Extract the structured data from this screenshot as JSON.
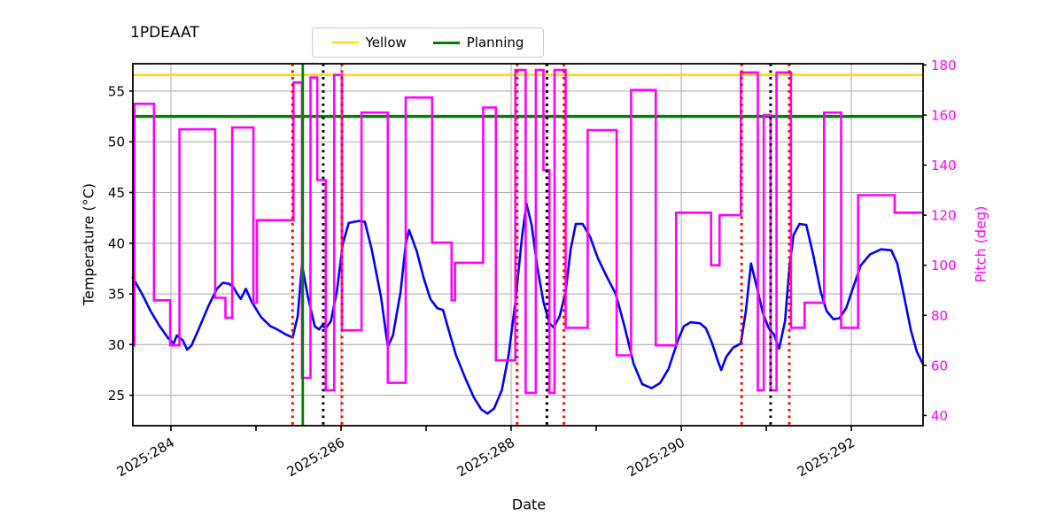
{
  "title": "1PDEAAT",
  "legend": {
    "items": [
      {
        "label": "Yellow",
        "color": "#FFD700",
        "linewidth": 2.5
      },
      {
        "label": "Planning",
        "color": "#008000",
        "linewidth": 3.5
      }
    ]
  },
  "axes": {
    "x": {
      "label": "Date",
      "range": [
        283.552,
        292.843
      ],
      "tick_days": [
        284,
        285,
        286,
        287,
        288,
        289,
        290,
        291,
        292
      ],
      "tick_labels": {
        "284": "2025:284",
        "286": "2025:286",
        "288": "2025:288",
        "290": "2025:290",
        "292": "2025:292"
      },
      "grid_days": [
        284,
        286,
        288,
        290,
        292
      ]
    },
    "y_left": {
      "label": "Temperature (°C)",
      "range": [
        22,
        57.7
      ],
      "ticks": [
        25,
        30,
        35,
        40,
        45,
        50,
        55
      ],
      "color": "#000000"
    },
    "y_right": {
      "label": "Pitch (deg)",
      "range": [
        35.9,
        180.5
      ],
      "ticks": [
        40,
        60,
        80,
        100,
        120,
        140,
        160,
        180
      ],
      "color": "#FF00FF"
    }
  },
  "chart_data": {
    "type": "line",
    "title": "1PDEAAT",
    "xlabel": "Date",
    "x_unit": "year:day-of-year",
    "grid": true,
    "legend_position": "top-center",
    "series": [
      {
        "name": "temperature",
        "axis": "left",
        "style": "line",
        "color": "#0000FF",
        "linewidth": 2.6,
        "points": [
          [
            283.55,
            36.6
          ],
          [
            283.66,
            35.0
          ],
          [
            283.76,
            33.3
          ],
          [
            283.86,
            31.9
          ],
          [
            283.97,
            30.6
          ],
          [
            284.03,
            30.1
          ],
          [
            284.07,
            30.9
          ],
          [
            284.14,
            30.4
          ],
          [
            284.19,
            29.5
          ],
          [
            284.24,
            29.9
          ],
          [
            284.33,
            31.6
          ],
          [
            284.44,
            33.8
          ],
          [
            284.54,
            35.5
          ],
          [
            284.61,
            36.1
          ],
          [
            284.68,
            36.0
          ],
          [
            284.73,
            35.7
          ],
          [
            284.78,
            35.0
          ],
          [
            284.82,
            34.5
          ],
          [
            284.88,
            35.5
          ],
          [
            284.95,
            34.2
          ],
          [
            285.06,
            32.7
          ],
          [
            285.17,
            31.8
          ],
          [
            285.25,
            31.5
          ],
          [
            285.35,
            31.0
          ],
          [
            285.43,
            30.7
          ],
          [
            285.49,
            32.8
          ],
          [
            285.54,
            37.9
          ],
          [
            285.61,
            34.7
          ],
          [
            285.69,
            31.8
          ],
          [
            285.74,
            31.5
          ],
          [
            285.78,
            31.9
          ],
          [
            285.82,
            31.6
          ],
          [
            285.88,
            32.3
          ],
          [
            285.95,
            35.2
          ],
          [
            286.02,
            39.9
          ],
          [
            286.09,
            42.0
          ],
          [
            286.21,
            42.2
          ],
          [
            286.28,
            42.1
          ],
          [
            286.36,
            39.4
          ],
          [
            286.47,
            34.7
          ],
          [
            286.55,
            29.8
          ],
          [
            286.61,
            30.9
          ],
          [
            286.7,
            35.2
          ],
          [
            286.76,
            39.9
          ],
          [
            286.8,
            41.3
          ],
          [
            286.89,
            39.2
          ],
          [
            286.97,
            36.6
          ],
          [
            287.05,
            34.5
          ],
          [
            287.13,
            33.6
          ],
          [
            287.2,
            33.4
          ],
          [
            287.25,
            31.9
          ],
          [
            287.35,
            29.0
          ],
          [
            287.46,
            26.7
          ],
          [
            287.56,
            24.8
          ],
          [
            287.65,
            23.6
          ],
          [
            287.72,
            23.2
          ],
          [
            287.8,
            23.7
          ],
          [
            287.89,
            25.5
          ],
          [
            287.97,
            29.0
          ],
          [
            288.05,
            34.2
          ],
          [
            288.13,
            40.8
          ],
          [
            288.18,
            43.9
          ],
          [
            288.24,
            41.8
          ],
          [
            288.31,
            37.5
          ],
          [
            288.38,
            34.2
          ],
          [
            288.45,
            32.1
          ],
          [
            288.5,
            31.7
          ],
          [
            288.57,
            32.8
          ],
          [
            288.64,
            35.2
          ],
          [
            288.7,
            39.4
          ],
          [
            288.76,
            41.9
          ],
          [
            288.84,
            41.9
          ],
          [
            288.93,
            40.6
          ],
          [
            289.02,
            38.5
          ],
          [
            289.13,
            36.6
          ],
          [
            289.23,
            35.0
          ],
          [
            289.33,
            31.9
          ],
          [
            289.44,
            28.1
          ],
          [
            289.54,
            26.1
          ],
          [
            289.65,
            25.7
          ],
          [
            289.75,
            26.2
          ],
          [
            289.85,
            27.6
          ],
          [
            289.96,
            30.4
          ],
          [
            290.03,
            31.8
          ],
          [
            290.11,
            32.2
          ],
          [
            290.22,
            32.1
          ],
          [
            290.29,
            31.6
          ],
          [
            290.36,
            30.2
          ],
          [
            290.43,
            28.4
          ],
          [
            290.47,
            27.5
          ],
          [
            290.53,
            28.8
          ],
          [
            290.61,
            29.7
          ],
          [
            290.7,
            30.1
          ],
          [
            290.76,
            33.3
          ],
          [
            290.82,
            38.0
          ],
          [
            290.89,
            35.6
          ],
          [
            290.96,
            33.1
          ],
          [
            291.03,
            31.6
          ],
          [
            291.09,
            31.0
          ],
          [
            291.15,
            29.6
          ],
          [
            291.22,
            32.3
          ],
          [
            291.27,
            37.5
          ],
          [
            291.32,
            40.8
          ],
          [
            291.39,
            41.9
          ],
          [
            291.47,
            41.8
          ],
          [
            291.55,
            38.9
          ],
          [
            291.64,
            35.2
          ],
          [
            291.71,
            33.3
          ],
          [
            291.79,
            32.5
          ],
          [
            291.86,
            32.6
          ],
          [
            291.94,
            33.6
          ],
          [
            292.02,
            35.6
          ],
          [
            292.11,
            37.8
          ],
          [
            292.22,
            38.9
          ],
          [
            292.35,
            39.4
          ],
          [
            292.47,
            39.3
          ],
          [
            292.54,
            38.0
          ],
          [
            292.61,
            35.2
          ],
          [
            292.7,
            31.4
          ],
          [
            292.77,
            29.3
          ],
          [
            292.84,
            28.1
          ]
        ]
      },
      {
        "name": "pitch",
        "axis": "right",
        "style": "step-post",
        "color": "#FF00FF",
        "linewidth": 2.6,
        "points": [
          [
            283.55,
            68
          ],
          [
            283.57,
            164.5
          ],
          [
            283.8,
            86
          ],
          [
            283.99,
            68
          ],
          [
            284.1,
            154.3
          ],
          [
            284.52,
            87
          ],
          [
            284.64,
            79
          ],
          [
            284.72,
            155
          ],
          [
            284.97,
            85
          ],
          [
            285.01,
            118
          ],
          [
            285.44,
            173
          ],
          [
            285.54,
            55
          ],
          [
            285.64,
            175
          ],
          [
            285.72,
            134
          ],
          [
            285.82,
            50
          ],
          [
            285.92,
            176
          ],
          [
            286.01,
            74
          ],
          [
            286.24,
            161
          ],
          [
            286.55,
            53
          ],
          [
            286.76,
            167
          ],
          [
            287.07,
            109
          ],
          [
            287.3,
            86
          ],
          [
            287.34,
            101
          ],
          [
            287.67,
            163
          ],
          [
            287.82,
            62
          ],
          [
            288.05,
            178
          ],
          [
            288.17,
            49
          ],
          [
            288.29,
            178
          ],
          [
            288.38,
            138
          ],
          [
            288.45,
            49
          ],
          [
            288.51,
            178
          ],
          [
            288.64,
            75
          ],
          [
            288.9,
            154
          ],
          [
            289.24,
            64
          ],
          [
            289.41,
            170
          ],
          [
            289.7,
            68
          ],
          [
            289.94,
            121
          ],
          [
            290.35,
            100
          ],
          [
            290.45,
            120
          ],
          [
            290.7,
            177
          ],
          [
            290.9,
            50
          ],
          [
            290.97,
            160
          ],
          [
            291.05,
            50
          ],
          [
            291.12,
            177
          ],
          [
            291.29,
            75
          ],
          [
            291.45,
            85
          ],
          [
            291.68,
            161
          ],
          [
            291.88,
            75
          ],
          [
            292.08,
            128
          ],
          [
            292.51,
            121
          ]
        ]
      }
    ],
    "reference_lines": [
      {
        "name": "Yellow",
        "orientation": "horizontal",
        "axis": "left",
        "value": 56.6,
        "color": "#FFD700",
        "linestyle": "solid",
        "linewidth": 2.5
      },
      {
        "name": "Planning",
        "orientation": "horizontal",
        "axis": "left",
        "value": 52.5,
        "color": "#008000",
        "linestyle": "solid",
        "linewidth": 3.4
      }
    ],
    "vertical_markers": [
      {
        "name": "red-dotted-markers",
        "color": "#FF0000",
        "linestyle": "dotted",
        "linewidth": 3,
        "days": [
          285.43,
          286.01,
          288.07,
          288.42,
          288.62,
          290.71,
          291.27
        ]
      },
      {
        "name": "black-dotted-markers",
        "color": "#000000",
        "linestyle": "dotted",
        "linewidth": 3,
        "days": [
          285.79,
          288.42,
          291.05
        ]
      },
      {
        "name": "green-solid-marker",
        "color": "#008000",
        "linestyle": "solid",
        "linewidth": 2.8,
        "days": [
          285.55
        ]
      }
    ],
    "grid_color": "#B0B0B0"
  }
}
